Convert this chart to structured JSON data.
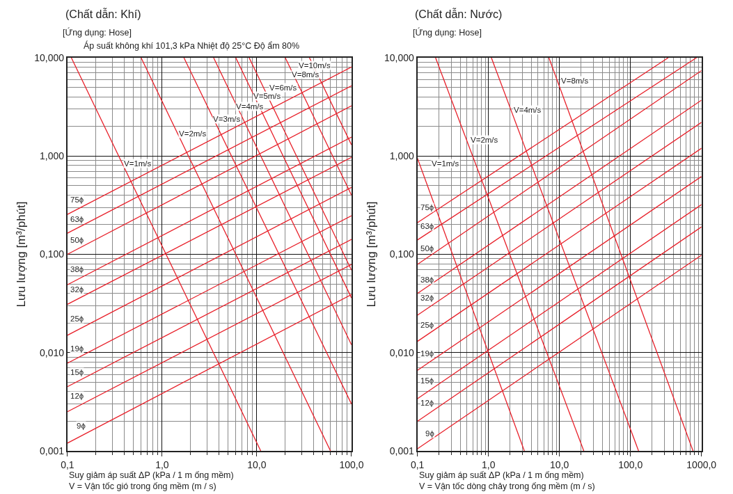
{
  "chart_data": [
    {
      "type": "line",
      "title": "(Chất dẫn: Khí)",
      "subtitle": "[Ứng dụng: Hose]",
      "xlabel": "Suy giảm áp suất ΔP (kPa / 1 m ống mềm)\nV = Vận tốc gió trong ống mềm (m / s)",
      "ylabel": "Lưu lượng [m³/phút]",
      "log": "xy",
      "grid": true,
      "xlim": [
        0.1,
        100
      ],
      "ylim": [
        0.001,
        10
      ],
      "xticks": [
        {
          "value": 0.1,
          "label": "0,1"
        },
        {
          "value": 1,
          "label": "1,0"
        },
        {
          "value": 10,
          "label": "10,0"
        },
        {
          "value": 100,
          "label": "100,0"
        }
      ],
      "yticks": [
        {
          "value": 0.001,
          "label": "0,001"
        },
        {
          "value": 0.01,
          "label": "0,010"
        },
        {
          "value": 0.1,
          "label": "0,100"
        },
        {
          "value": 1,
          "label": "1,000"
        },
        {
          "value": 10,
          "label": "10,000"
        }
      ],
      "series": [
        {
          "color": "#e8202a",
          "x": [
            0.1,
            100
          ],
          "values": [
            0.255,
            8.06
          ]
        },
        {
          "color": "#e8202a",
          "x": [
            0.1,
            100
          ],
          "values": [
            0.164,
            5.19
          ]
        },
        {
          "color": "#e8202a",
          "x": [
            0.1,
            100
          ],
          "values": [
            0.1,
            3.24
          ]
        },
        {
          "color": "#e8202a",
          "x": [
            0.1,
            100
          ],
          "values": [
            0.049,
            1.56
          ]
        },
        {
          "color": "#e8202a",
          "x": [
            0.1,
            100
          ],
          "values": [
            0.031,
            0.97
          ]
        },
        {
          "color": "#e8202a",
          "x": [
            0.1,
            100
          ],
          "values": [
            0.015,
            0.48
          ]
        },
        {
          "color": "#e8202a",
          "x": [
            0.1,
            100
          ],
          "values": [
            0.0078,
            0.247
          ]
        },
        {
          "color": "#e8202a",
          "x": [
            0.1,
            100
          ],
          "values": [
            0.0045,
            0.142
          ]
        },
        {
          "color": "#e8202a",
          "x": [
            0.1,
            100
          ],
          "values": [
            0.0025,
            0.079
          ]
        },
        {
          "color": "#e8202a",
          "x": [
            0.1,
            100
          ],
          "values": [
            0.0012,
            0.039
          ]
        },
        {
          "color": "#e8202a",
          "x": [
            0.11,
            11
          ],
          "values": [
            10,
            0.001
          ]
        },
        {
          "color": "#e8202a",
          "x": [
            0.6,
            60
          ],
          "values": [
            10,
            0.001
          ]
        },
        {
          "color": "#e8202a",
          "x": [
            1.7,
            100
          ],
          "values": [
            10,
            0.003
          ]
        },
        {
          "color": "#e8202a",
          "x": [
            3.5,
            100
          ],
          "values": [
            10,
            0.012
          ]
        },
        {
          "color": "#e8202a",
          "x": [
            6,
            100
          ],
          "values": [
            10,
            0.036
          ]
        },
        {
          "color": "#e8202a",
          "x": [
            8.3,
            100
          ],
          "values": [
            10,
            0.069
          ]
        },
        {
          "color": "#e8202a",
          "x": [
            20,
            100
          ],
          "values": [
            10,
            0.4
          ]
        },
        {
          "color": "#e8202a",
          "x": [
            36,
            100
          ],
          "values": [
            10,
            1.3
          ]
        }
      ],
      "annotations": [
        "Áp suất không khí 101,3 kPa Nhiệt độ 25°C Độ ẩm 80%",
        {
          "text": "75ϕ",
          "x": 0.126,
          "y": 0.36
        },
        {
          "text": "63ϕ",
          "x": 0.126,
          "y": 0.228
        },
        {
          "text": "50ϕ",
          "x": 0.126,
          "y": 0.14
        },
        {
          "text": "38ϕ",
          "x": 0.126,
          "y": 0.07
        },
        {
          "text": "32ϕ",
          "x": 0.126,
          "y": 0.044
        },
        {
          "text": "25ϕ",
          "x": 0.126,
          "y": 0.022
        },
        {
          "text": "19ϕ",
          "x": 0.126,
          "y": 0.011
        },
        {
          "text": "15ϕ",
          "x": 0.126,
          "y": 0.0063
        },
        {
          "text": "12ϕ",
          "x": 0.126,
          "y": 0.0036
        },
        {
          "text": "9ϕ",
          "x": 0.14,
          "y": 0.0018
        },
        {
          "text": "V=1m/s",
          "x": 0.55,
          "y": 0.84
        },
        {
          "text": "V=2m/s",
          "x": 2.1,
          "y": 1.7
        },
        {
          "text": "V=3m/s",
          "x": 4.8,
          "y": 2.4
        },
        {
          "text": "V=4m/s",
          "x": 8.5,
          "y": 3.2
        },
        {
          "text": "V=5m/s",
          "x": 13,
          "y": 4.1
        },
        {
          "text": "V=6m/s",
          "x": 19,
          "y": 5
        },
        {
          "text": "V=8m/s",
          "x": 33,
          "y": 6.8
        },
        {
          "text": "V=10m/s",
          "x": 41,
          "y": 8.4
        }
      ]
    },
    {
      "type": "line",
      "title": "(Chất dẫn: Nước)",
      "subtitle": "[Ứng dụng: Hose]",
      "xlabel": "Suy giảm áp suất ΔP (kPa / 1 m ống mềm)\nV = Vận tốc dòng chảy trong ống mềm (m / s)",
      "ylabel": "Lưu lượng [m³/phút]",
      "log": "xy",
      "grid": true,
      "xlim": [
        0.1,
        1000
      ],
      "ylim": [
        0.001,
        10
      ],
      "xticks": [
        {
          "value": 0.1,
          "label": "0,1"
        },
        {
          "value": 1,
          "label": "1,0"
        },
        {
          "value": 10,
          "label": "10,0"
        },
        {
          "value": 100,
          "label": "100,0"
        },
        {
          "value": 1000,
          "label": "1000,0"
        }
      ],
      "yticks": [
        {
          "value": 0.001,
          "label": "0,001"
        },
        {
          "value": 0.01,
          "label": "0,010"
        },
        {
          "value": 0.1,
          "label": "0,100"
        },
        {
          "value": 1,
          "label": "1,000"
        },
        {
          "value": 10,
          "label": "10,000"
        }
      ],
      "series": [
        {
          "color": "#e8202a",
          "x": [
            0.1,
            340
          ],
          "values": [
            0.21,
            10
          ]
        },
        {
          "color": "#e8202a",
          "x": [
            0.1,
            850
          ],
          "values": [
            0.14,
            10
          ]
        },
        {
          "color": "#e8202a",
          "x": [
            0.1,
            1000
          ],
          "values": [
            0.079,
            7.4
          ]
        },
        {
          "color": "#e8202a",
          "x": [
            0.1,
            1000
          ],
          "values": [
            0.04,
            3.7
          ]
        },
        {
          "color": "#e8202a",
          "x": [
            0.1,
            1000
          ],
          "values": [
            0.024,
            2.2
          ]
        },
        {
          "color": "#e8202a",
          "x": [
            0.1,
            1000
          ],
          "values": [
            0.013,
            1.2
          ]
        },
        {
          "color": "#e8202a",
          "x": [
            0.1,
            1000
          ],
          "values": [
            0.0066,
            0.62
          ]
        },
        {
          "color": "#e8202a",
          "x": [
            0.1,
            1000
          ],
          "values": [
            0.0034,
            0.32
          ]
        },
        {
          "color": "#e8202a",
          "x": [
            0.1,
            1000
          ],
          "values": [
            0.002,
            0.19
          ]
        },
        {
          "color": "#e8202a",
          "x": [
            0.1,
            1000
          ],
          "values": [
            0.00105,
            0.098
          ]
        },
        {
          "color": "#e8202a",
          "x": [
            0.1,
            3.2
          ],
          "values": [
            0.95,
            0.001
          ]
        },
        {
          "color": "#e8202a",
          "x": [
            0.18,
            22
          ],
          "values": [
            10,
            0.001
          ]
        },
        {
          "color": "#e8202a",
          "x": [
            1.1,
            130
          ],
          "values": [
            10,
            0.001
          ]
        },
        {
          "color": "#e8202a",
          "x": [
            7.1,
            760
          ],
          "values": [
            10,
            0.001
          ]
        }
      ],
      "annotations": [
        {
          "text": "75ϕ",
          "x": 0.138,
          "y": 0.3
        },
        {
          "text": "63ϕ",
          "x": 0.138,
          "y": 0.194
        },
        {
          "text": "50ϕ",
          "x": 0.138,
          "y": 0.115
        },
        {
          "text": "38ϕ",
          "x": 0.138,
          "y": 0.055
        },
        {
          "text": "32ϕ",
          "x": 0.138,
          "y": 0.036
        },
        {
          "text": "25ϕ",
          "x": 0.138,
          "y": 0.019
        },
        {
          "text": "19ϕ",
          "x": 0.138,
          "y": 0.0098
        },
        {
          "text": "15ϕ",
          "x": 0.138,
          "y": 0.0052
        },
        {
          "text": "12ϕ",
          "x": 0.138,
          "y": 0.0031
        },
        {
          "text": "9ϕ",
          "x": 0.15,
          "y": 0.0015
        },
        {
          "text": "V=1m/s",
          "x": 0.25,
          "y": 0.84
        },
        {
          "text": "V=2m/s",
          "x": 0.87,
          "y": 1.46
        },
        {
          "text": "V=4m/s",
          "x": 3.6,
          "y": 2.94
        },
        {
          "text": "V=8m/s",
          "x": 16.5,
          "y": 5.8
        }
      ]
    }
  ]
}
